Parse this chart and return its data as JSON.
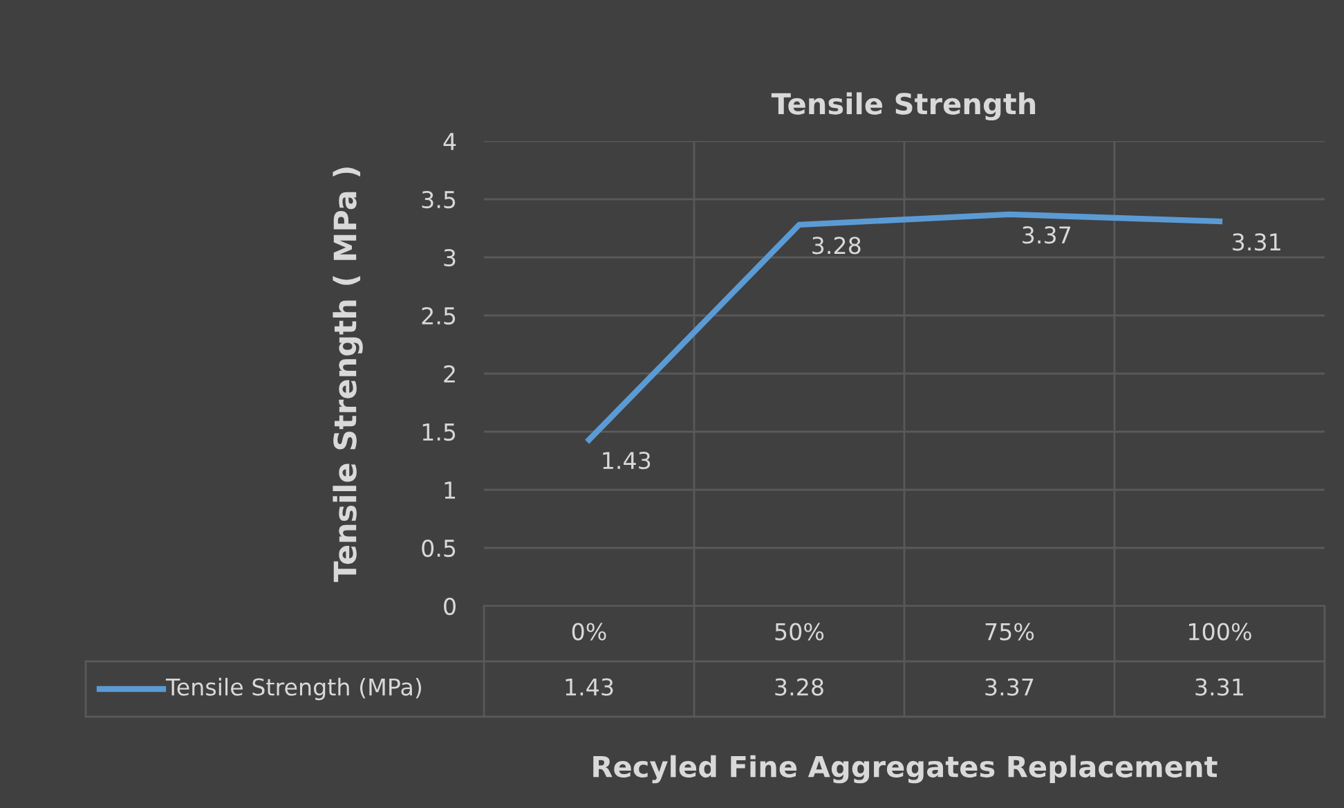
{
  "chart_data": {
    "type": "line",
    "title": "Tensile Strength",
    "xlabel": "Recyled Fine Aggregates Replacement",
    "ylabel": "Tensile Strength ( MPa )",
    "categories": [
      "0%",
      "50%",
      "75%",
      "100%"
    ],
    "series": [
      {
        "name": "Tensile Strength (MPa)",
        "color": "#5b9bd5",
        "values": [
          1.43,
          3.28,
          3.37,
          3.31
        ],
        "value_labels": [
          "1.43",
          "3.28",
          "3.37",
          "3.31"
        ]
      }
    ],
    "ylim": [
      0,
      4
    ],
    "yticks": [
      0,
      0.5,
      1,
      1.5,
      2,
      2.5,
      3,
      3.5,
      4
    ],
    "annotations": [
      {
        "text": "1.43",
        "x": "0%",
        "y": 1.43
      },
      {
        "text": "3.28",
        "x": "50%",
        "y": 3.28
      },
      {
        "text": "3.37",
        "x": "75%",
        "y": 3.37
      },
      {
        "text": "3.31",
        "x": "100%",
        "y": 3.31
      }
    ],
    "grid": true,
    "legend": "bottom",
    "marker": "none",
    "line_style": "solid"
  }
}
